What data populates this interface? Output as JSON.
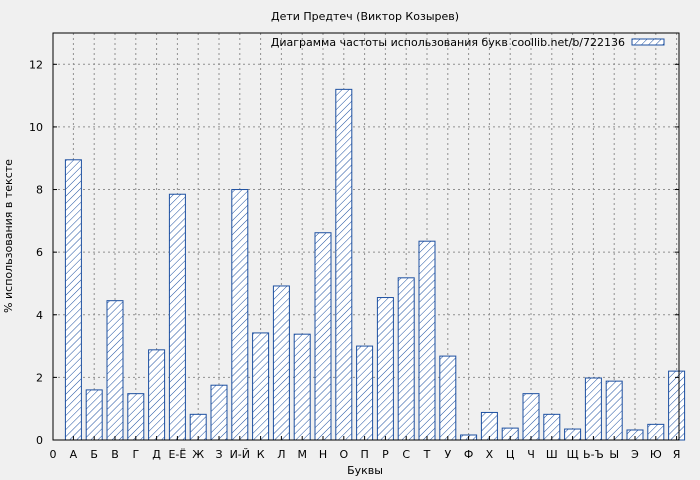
{
  "chart_data": {
    "type": "bar",
    "title": "Дети Предтеч (Виктор Козырев)",
    "xlabel": "Буквы",
    "ylabel": "% использования в тексте",
    "legend": {
      "label": "Диаграмма частоты использования букв coollib.net/b/722136",
      "position": "top-right"
    },
    "grid": true,
    "ylim": [
      0,
      13
    ],
    "yticks": [
      "0",
      "2",
      "4",
      "6",
      "8",
      "10",
      "12"
    ],
    "x_origin_label": "0",
    "categories": [
      "А",
      "Б",
      "В",
      "Г",
      "Д",
      "Е-Ё",
      "Ж",
      "З",
      "И-Й",
      "К",
      "Л",
      "М",
      "Н",
      "О",
      "П",
      "Р",
      "С",
      "Т",
      "У",
      "Ф",
      "Х",
      "Ц",
      "Ч",
      "Ш",
      "Щ",
      "Ь-Ъ",
      "Ы",
      "Э",
      "Ю",
      "Я"
    ],
    "values": [
      8.95,
      1.6,
      4.45,
      1.48,
      2.88,
      7.85,
      0.82,
      1.75,
      8.0,
      3.42,
      4.92,
      3.38,
      6.62,
      11.2,
      3.0,
      4.55,
      5.18,
      6.35,
      2.68,
      0.16,
      0.88,
      0.38,
      1.48,
      0.82,
      0.35,
      1.98,
      1.88,
      0.32,
      0.5,
      2.2
    ],
    "colors": {
      "bar_stroke": "#1c4fa0",
      "hatch": "#1c4fa0",
      "bar_fill": "#ffffff",
      "grid": "#909090",
      "plot_bg": "#f0f0f0"
    }
  }
}
